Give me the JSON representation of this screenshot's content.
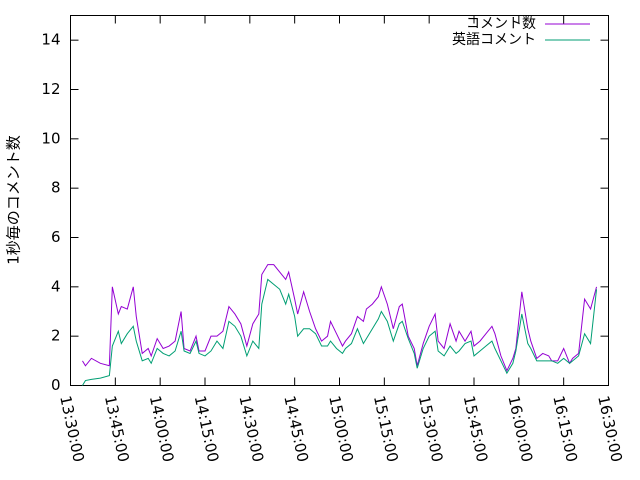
{
  "chart_data": {
    "type": "line",
    "ylabel": "1秒毎のコメント数",
    "x": [
      "13:34:00",
      "13:35:00",
      "13:37:00",
      "13:40:00",
      "13:43:00",
      "13:44:00",
      "13:46:00",
      "13:47:00",
      "13:49:00",
      "13:51:00",
      "13:52:00",
      "13:54:00",
      "13:56:00",
      "13:57:00",
      "13:59:00",
      "14:01:00",
      "14:03:00",
      "14:05:00",
      "14:07:00",
      "14:08:00",
      "14:10:00",
      "14:12:00",
      "14:13:00",
      "14:15:00",
      "14:17:00",
      "14:19:00",
      "14:21:00",
      "14:23:00",
      "14:25:00",
      "14:27:00",
      "14:29:00",
      "14:31:00",
      "14:33:00",
      "14:34:00",
      "14:36:00",
      "14:38:00",
      "14:40:00",
      "14:42:00",
      "14:43:00",
      "14:45:00",
      "14:46:00",
      "14:48:00",
      "14:50:00",
      "14:52:00",
      "14:54:00",
      "14:56:00",
      "14:57:00",
      "14:59:00",
      "15:01:00",
      "15:02:00",
      "15:04:00",
      "15:06:00",
      "15:08:00",
      "15:09:00",
      "15:11:00",
      "15:13:00",
      "15:14:00",
      "15:16:00",
      "15:18:00",
      "15:20:00",
      "15:21:00",
      "15:23:00",
      "15:25:00",
      "15:26:00",
      "15:28:00",
      "15:30:00",
      "15:32:00",
      "15:33:00",
      "15:35:00",
      "15:37:00",
      "15:39:00",
      "15:40:00",
      "15:42:00",
      "15:44:00",
      "15:45:00",
      "15:47:00",
      "15:49:00",
      "15:51:00",
      "15:52:00",
      "15:54:00",
      "15:56:00",
      "15:58:00",
      "15:59:00",
      "16:01:00",
      "16:03:00",
      "16:04:00",
      "16:06:00",
      "16:08:00",
      "16:10:00",
      "16:11:00",
      "16:13:00",
      "16:15:00",
      "16:17:00",
      "16:18:00",
      "16:20:00",
      "16:22:00",
      "16:24:00",
      "16:26:00"
    ],
    "series": [
      {
        "name": "コメント数",
        "color": "#9400d3",
        "values": [
          1.0,
          0.8,
          1.1,
          0.9,
          0.8,
          4.0,
          2.9,
          3.2,
          3.1,
          4.0,
          2.8,
          1.3,
          1.5,
          1.2,
          1.9,
          1.5,
          1.6,
          1.8,
          3.0,
          1.5,
          1.4,
          2.0,
          1.4,
          1.4,
          2.0,
          2.0,
          2.2,
          3.2,
          2.9,
          2.5,
          1.6,
          2.5,
          2.9,
          4.5,
          4.9,
          4.9,
          4.6,
          4.3,
          4.6,
          3.5,
          2.9,
          3.8,
          3.0,
          2.3,
          1.8,
          2.0,
          2.6,
          2.1,
          1.6,
          1.8,
          2.1,
          2.8,
          2.6,
          3.1,
          3.3,
          3.6,
          4.0,
          3.3,
          2.3,
          3.2,
          3.3,
          2.0,
          1.5,
          0.8,
          1.7,
          2.4,
          2.9,
          1.8,
          1.5,
          2.5,
          1.8,
          2.2,
          1.8,
          2.2,
          1.6,
          1.8,
          2.1,
          2.4,
          2.1,
          1.2,
          0.6,
          1.1,
          1.5,
          3.8,
          2.3,
          1.8,
          1.1,
          1.3,
          1.2,
          1.0,
          1.0,
          1.5,
          0.9,
          1.1,
          1.3,
          3.5,
          3.1,
          4.0
        ]
      },
      {
        "name": "英語コメント",
        "color": "#009e73",
        "values": [
          0.0,
          0.2,
          0.25,
          0.3,
          0.4,
          1.6,
          2.2,
          1.7,
          2.1,
          2.4,
          1.8,
          1.0,
          1.1,
          0.9,
          1.5,
          1.3,
          1.2,
          1.4,
          2.2,
          1.4,
          1.3,
          1.8,
          1.3,
          1.2,
          1.4,
          1.8,
          1.5,
          2.6,
          2.4,
          2.0,
          1.2,
          1.8,
          1.5,
          3.3,
          4.3,
          4.1,
          3.9,
          3.3,
          3.7,
          2.8,
          2.0,
          2.3,
          2.3,
          2.1,
          1.6,
          1.6,
          1.8,
          1.5,
          1.3,
          1.5,
          1.7,
          2.3,
          1.7,
          1.9,
          2.3,
          2.7,
          3.0,
          2.6,
          1.8,
          2.5,
          2.6,
          1.9,
          1.3,
          0.7,
          1.5,
          2.0,
          2.2,
          1.4,
          1.2,
          1.6,
          1.3,
          1.4,
          1.7,
          1.8,
          1.2,
          1.4,
          1.6,
          1.8,
          1.5,
          1.0,
          0.5,
          0.9,
          1.4,
          2.9,
          1.7,
          1.5,
          1.0,
          1.0,
          1.0,
          1.0,
          0.9,
          1.1,
          0.9,
          1.0,
          1.2,
          2.1,
          1.7,
          3.9
        ]
      }
    ],
    "xlim": [
      "13:30:00",
      "16:30:00"
    ],
    "xticks": [
      "13:30:00",
      "13:45:00",
      "14:00:00",
      "14:15:00",
      "14:30:00",
      "14:45:00",
      "15:00:00",
      "15:15:00",
      "15:30:00",
      "15:45:00",
      "16:00:00",
      "16:15:00",
      "16:30:00"
    ],
    "ylim": [
      0,
      15
    ],
    "yticks": [
      0,
      2,
      4,
      6,
      8,
      10,
      12,
      14
    ],
    "grid": false,
    "legend": "top-right"
  }
}
